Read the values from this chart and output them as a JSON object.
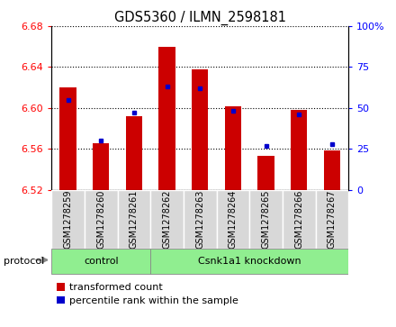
{
  "title": "GDS5360 / ILMN_2598181",
  "samples": [
    "GSM1278259",
    "GSM1278260",
    "GSM1278261",
    "GSM1278262",
    "GSM1278263",
    "GSM1278264",
    "GSM1278265",
    "GSM1278266",
    "GSM1278267"
  ],
  "transformed_count": [
    6.62,
    6.565,
    6.592,
    6.66,
    6.638,
    6.602,
    6.553,
    6.598,
    6.558
  ],
  "percentile_rank": [
    55,
    30,
    47,
    63,
    62,
    48,
    27,
    46,
    28
  ],
  "ylim": [
    6.52,
    6.68
  ],
  "yticks": [
    6.52,
    6.56,
    6.6,
    6.64,
    6.68
  ],
  "right_yticks": [
    0,
    25,
    50,
    75,
    100
  ],
  "bar_color": "#CC0000",
  "dot_color": "#0000CC",
  "bar_width": 0.5,
  "baseline": 6.52,
  "green_color": "#90EE90",
  "gray_color": "#d8d8d8",
  "legend_items": [
    {
      "label": "transformed count",
      "color": "#CC0000"
    },
    {
      "label": "percentile rank within the sample",
      "color": "#0000CC"
    }
  ],
  "control_count": 3,
  "knockdown_count": 6,
  "control_label": "control",
  "knockdown_label": "Csnk1a1 knockdown",
  "protocol_label": "protocol"
}
